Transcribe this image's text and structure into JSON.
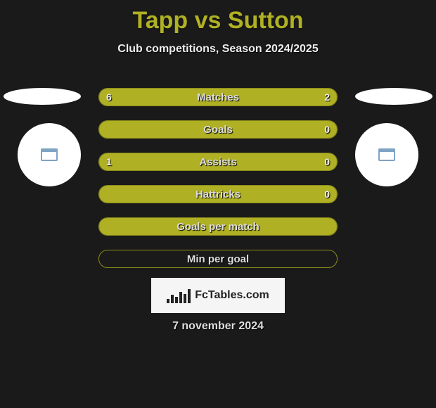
{
  "title": "Tapp vs Sutton",
  "subtitle": "Club competitions, Season 2024/2025",
  "date": "7 november 2024",
  "logo_text": "FcTables.com",
  "colors": {
    "accent": "#b0b024",
    "background": "#1a1a1a",
    "bar_border": "#8c8c1c"
  },
  "stats": [
    {
      "label": "Matches",
      "left_val": "6",
      "right_val": "2",
      "left_pct": 75,
      "right_pct": 25,
      "show_vals": true
    },
    {
      "label": "Goals",
      "left_val": "",
      "right_val": "0",
      "left_pct": 100,
      "right_pct": 0,
      "show_vals": true
    },
    {
      "label": "Assists",
      "left_val": "1",
      "right_val": "0",
      "left_pct": 100,
      "right_pct": 0,
      "show_vals": true
    },
    {
      "label": "Hattricks",
      "left_val": "",
      "right_val": "0",
      "left_pct": 100,
      "right_pct": 0,
      "show_vals": true
    },
    {
      "label": "Goals per match",
      "left_val": "",
      "right_val": "",
      "left_pct": 100,
      "right_pct": 0,
      "show_vals": false
    },
    {
      "label": "Min per goal",
      "left_val": "",
      "right_val": "",
      "left_pct": 0,
      "right_pct": 0,
      "show_vals": false
    }
  ]
}
